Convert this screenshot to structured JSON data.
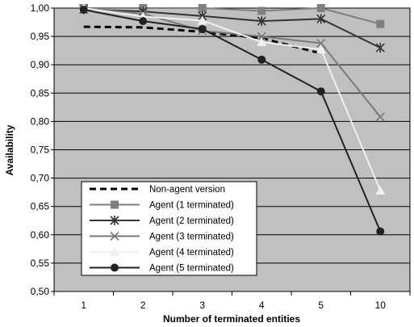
{
  "chart_data": {
    "type": "line",
    "title": "",
    "xlabel": "Number of terminated entities",
    "ylabel": "Availability",
    "categories": [
      "1",
      "2",
      "3",
      "4",
      "5",
      "10"
    ],
    "ylim": [
      0.5,
      1.0
    ],
    "yticks": [
      "0,50",
      "0,55",
      "0,60",
      "0,65",
      "0,70",
      "0,75",
      "0,80",
      "0,85",
      "0,90",
      "0,95",
      "1,00"
    ],
    "grid": true,
    "plot_background": "#c0c0c0",
    "legend_position": "lower-left",
    "series": [
      {
        "name": "Non-agent version",
        "values": [
          0.967,
          0.966,
          0.958,
          0.947,
          0.92,
          null
        ],
        "color": "#000000",
        "marker": "none",
        "dash": true
      },
      {
        "name": "Agent (1 terminated)",
        "values": [
          1.0,
          1.0,
          1.0,
          0.995,
          1.0,
          0.972
        ],
        "color": "#7f7f7f",
        "marker": "square"
      },
      {
        "name": "Agent (2 terminated)",
        "values": [
          0.998,
          0.994,
          0.986,
          0.977,
          0.981,
          0.93
        ],
        "color": "#333333",
        "marker": "asterisk"
      },
      {
        "name": "Agent (3 terminated)",
        "values": [
          1.0,
          0.99,
          0.96,
          0.95,
          0.938,
          0.808
        ],
        "color": "#7a7a7a",
        "marker": "x"
      },
      {
        "name": "Agent (4 terminated)",
        "values": [
          1.0,
          0.985,
          0.978,
          0.94,
          0.927,
          0.678
        ],
        "color": "#f0f0f0",
        "marker": "triangle"
      },
      {
        "name": "Agent (5 terminated)",
        "values": [
          0.997,
          0.977,
          0.963,
          0.909,
          0.853,
          0.606
        ],
        "color": "#222222",
        "marker": "circle"
      }
    ]
  }
}
